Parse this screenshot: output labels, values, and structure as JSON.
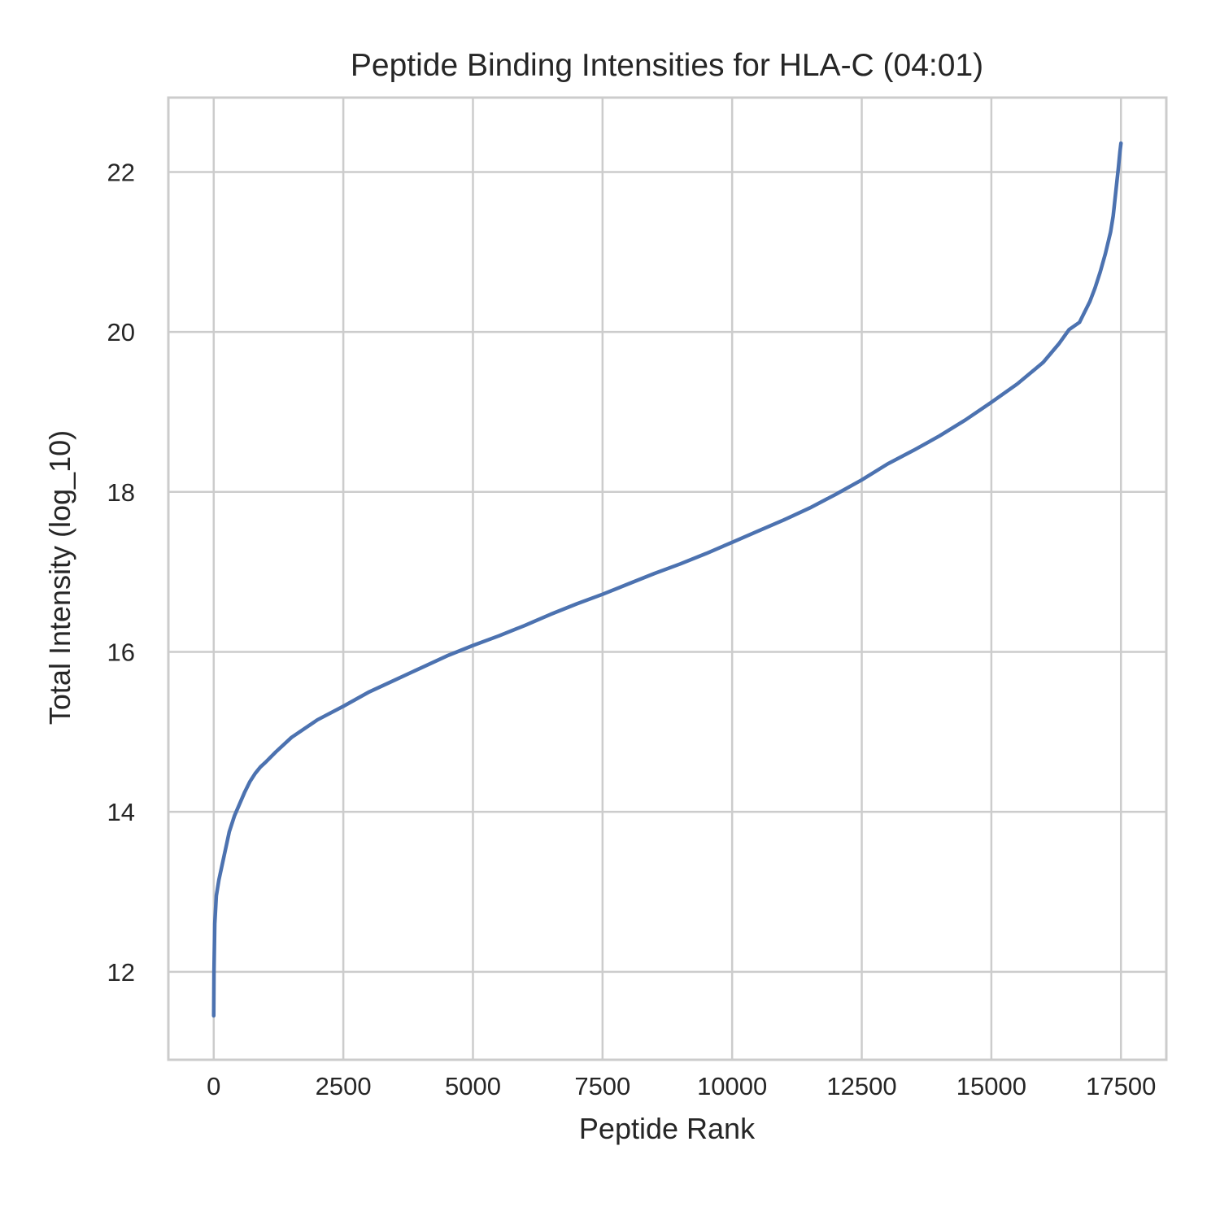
{
  "chart_data": {
    "type": "line",
    "title": "Peptide Binding Intensities for HLA-C (04:01)",
    "xlabel": "Peptide Rank",
    "ylabel": "Total Intensity (log_10)",
    "xlim": [
      -875,
      18375
    ],
    "ylim": [
      10.9,
      22.93
    ],
    "x_ticks": [
      0,
      2500,
      5000,
      7500,
      10000,
      12500,
      15000,
      17500
    ],
    "x_tick_labels": [
      "0",
      "2500",
      "5000",
      "7500",
      "10000",
      "12500",
      "15000",
      "17500"
    ],
    "y_ticks": [
      12,
      14,
      16,
      18,
      20,
      22
    ],
    "y_tick_labels": [
      "12",
      "14",
      "16",
      "18",
      "20",
      "22"
    ],
    "grid": true,
    "legend": "none",
    "series": [
      {
        "color": "#4c72b0",
        "x": [
          0,
          5,
          20,
          50,
          100,
          200,
          300,
          400,
          500,
          600,
          700,
          800,
          900,
          1000,
          1200,
          1500,
          2000,
          2500,
          3000,
          3500,
          4000,
          4500,
          5000,
          5500,
          6000,
          6500,
          7000,
          7500,
          8000,
          8500,
          9000,
          9500,
          10000,
          10500,
          11000,
          11500,
          12000,
          12500,
          13000,
          13500,
          14000,
          14500,
          15000,
          15500,
          16000,
          16300,
          16500,
          16700,
          16800,
          16900,
          17000,
          17100,
          17200,
          17300,
          17350,
          17400,
          17450,
          17480,
          17500
        ],
        "y": [
          11.45,
          12.0,
          12.6,
          12.95,
          13.15,
          13.45,
          13.75,
          13.95,
          14.1,
          14.25,
          14.38,
          14.48,
          14.56,
          14.62,
          14.75,
          14.93,
          15.15,
          15.32,
          15.5,
          15.65,
          15.8,
          15.95,
          16.08,
          16.2,
          16.33,
          16.47,
          16.6,
          16.72,
          16.85,
          16.98,
          17.1,
          17.23,
          17.37,
          17.51,
          17.65,
          17.8,
          17.97,
          18.15,
          18.35,
          18.52,
          18.7,
          18.9,
          19.12,
          19.35,
          19.62,
          19.85,
          20.03,
          20.12,
          20.25,
          20.38,
          20.55,
          20.75,
          20.98,
          21.25,
          21.45,
          21.75,
          22.05,
          22.25,
          22.36
        ]
      }
    ]
  }
}
